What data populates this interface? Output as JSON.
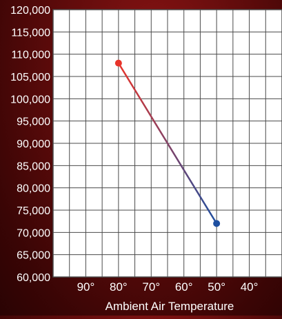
{
  "chart_data": {
    "type": "line",
    "title": "",
    "xlabel": "Ambient Air Temperature",
    "ylabel": "",
    "x_ticks": [
      "90°",
      "80°",
      "70°",
      "60°",
      "50°",
      "40°"
    ],
    "x_tick_values": [
      90,
      80,
      70,
      60,
      50,
      40
    ],
    "x_range": [
      100,
      30
    ],
    "x_reversed": true,
    "y_ticks": [
      "60,000",
      "65,000",
      "70,000",
      "75,000",
      "80,000",
      "85,000",
      "90,000",
      "95,000",
      "100,000",
      "105,000",
      "110,000",
      "115,000",
      "120,000"
    ],
    "ylim": [
      60000,
      120000
    ],
    "grid": true,
    "series": [
      {
        "points": [
          {
            "x": 80,
            "y": 108000
          },
          {
            "x": 50,
            "y": 72000
          }
        ],
        "color_start": "#e8342a",
        "color_end": "#1e4fa0"
      }
    ]
  },
  "colors": {
    "background": "#5e0b0b",
    "plot_background": "#ffffff",
    "grid": "#4a4a4a",
    "text": "#ffffff"
  }
}
